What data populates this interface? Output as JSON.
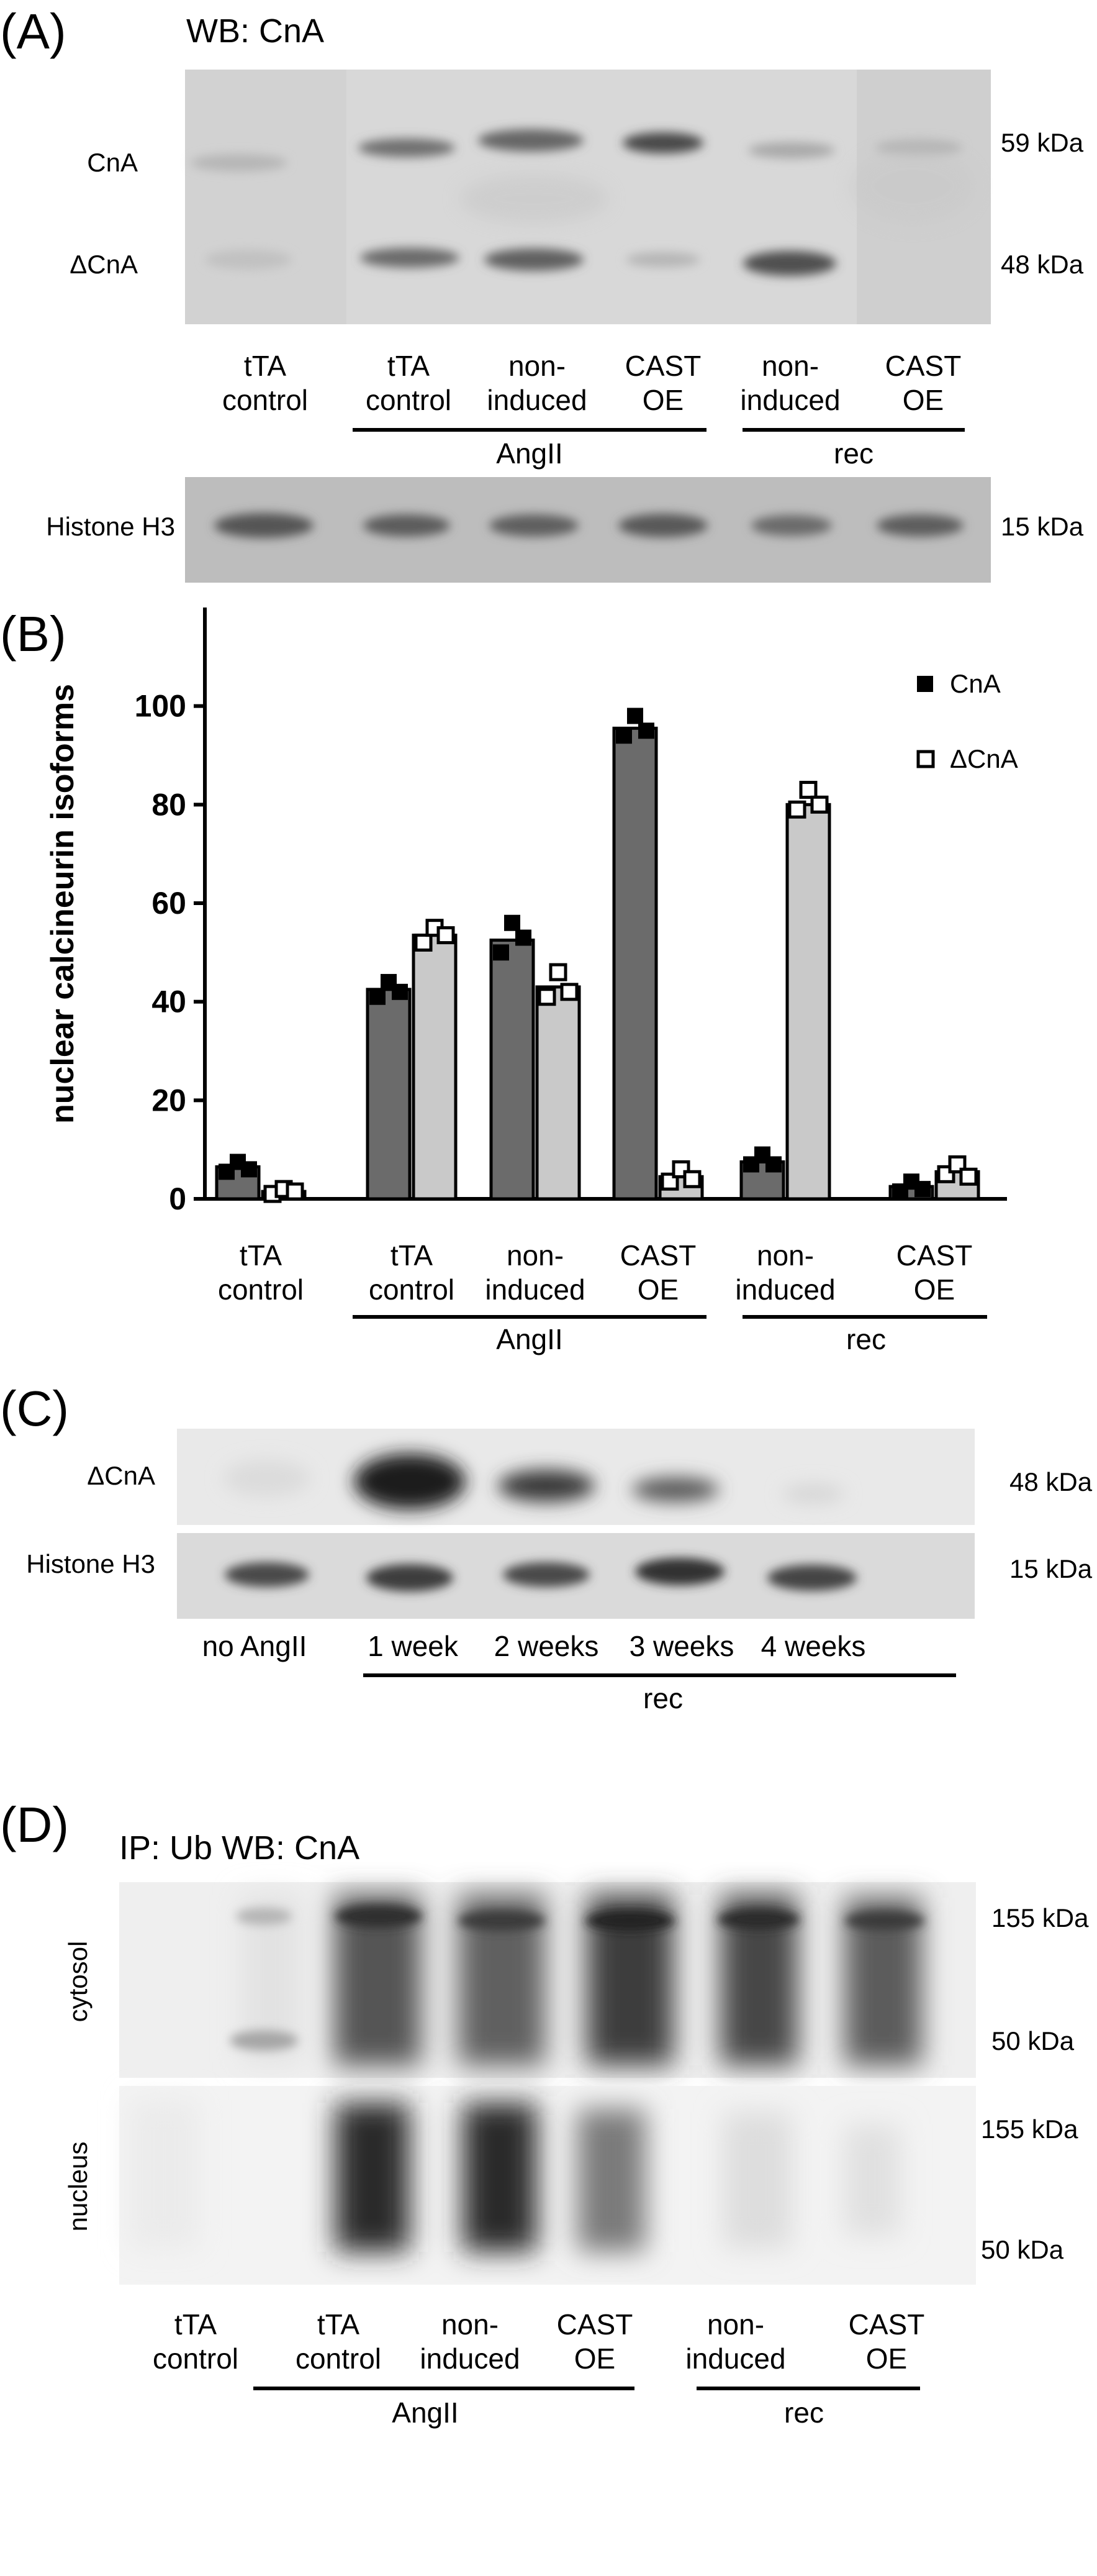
{
  "panelA": {
    "label": "(A)",
    "title": "WB: CnA",
    "band_labels": [
      "CnA",
      "ΔCnA"
    ],
    "kda": [
      "59 kDa",
      "48 kDa"
    ],
    "lanes": [
      [
        "tTA",
        "control"
      ],
      [
        "tTA",
        "control"
      ],
      [
        "non-",
        "induced"
      ],
      [
        "CAST",
        "OE"
      ],
      [
        "non-",
        "induced"
      ],
      [
        "CAST",
        "OE"
      ]
    ],
    "groups": [
      "AngII",
      "rec"
    ],
    "histone_label": "Histone H3",
    "histone_kda": "15 kDa"
  },
  "panelB": {
    "label": "(B)",
    "lanes": [
      [
        "tTA",
        "control"
      ],
      [
        "tTA",
        "control"
      ],
      [
        "non-",
        "induced"
      ],
      [
        "CAST",
        "OE"
      ],
      [
        "non-",
        "induced"
      ],
      [
        "CAST",
        "OE"
      ]
    ],
    "groups": [
      "AngII",
      "rec"
    ]
  },
  "panelC": {
    "label": "(C)",
    "band_labels": [
      "ΔCnA",
      "Histone H3"
    ],
    "kda": [
      "48 kDa",
      "15 kDa"
    ],
    "lanes": [
      "no AngII",
      "1 week",
      "2 weeks",
      "3 weeks",
      "4 weeks"
    ],
    "group": "rec"
  },
  "panelD": {
    "label": "(D)",
    "title": "IP: Ub WB: CnA",
    "row_labels": [
      "cytosol",
      "nucleus"
    ],
    "kda": [
      "155 kDa",
      "50 kDa"
    ],
    "lanes": [
      [
        "tTA",
        "control"
      ],
      [
        "tTA",
        "control"
      ],
      [
        "non-",
        "induced"
      ],
      [
        "CAST",
        "OE"
      ],
      [
        "non-",
        "induced"
      ],
      [
        "CAST",
        "OE"
      ]
    ],
    "groups": [
      "AngII",
      "rec"
    ]
  },
  "chart_data": {
    "type": "bar",
    "ylabel": "nuclear calcineurin isoforms",
    "ylim": [
      0,
      120
    ],
    "yticks": [
      0,
      20,
      40,
      60,
      80,
      100
    ],
    "categories": [
      "tTA control",
      "AngII tTA control",
      "AngII non-induced",
      "AngII CAST OE",
      "rec non-induced",
      "rec CAST OE"
    ],
    "series": [
      {
        "name": "CnA",
        "color": "#6b6b6b",
        "marker": "filled-square",
        "values": [
          6.5,
          42.5,
          52.5,
          95.5,
          7.5,
          2.5
        ],
        "points": [
          [
            5.5,
            7.5,
            6
          ],
          [
            41,
            44,
            42
          ],
          [
            50,
            56,
            53
          ],
          [
            94,
            98,
            95
          ],
          [
            7,
            9,
            7
          ],
          [
            1.5,
            3.5,
            2
          ]
        ]
      },
      {
        "name": "ΔCnA",
        "color": "#c9c9c9",
        "marker": "open-square",
        "values": [
          1.5,
          53.5,
          43,
          4.5,
          80,
          5.5
        ],
        "points": [
          [
            1,
            2,
            1.5
          ],
          [
            52,
            55,
            53.5
          ],
          [
            41,
            46,
            42
          ],
          [
            3.5,
            6,
            4
          ],
          [
            79,
            83,
            80
          ],
          [
            5,
            7,
            4.5
          ]
        ]
      }
    ],
    "legend": "top-right",
    "grid": false
  }
}
